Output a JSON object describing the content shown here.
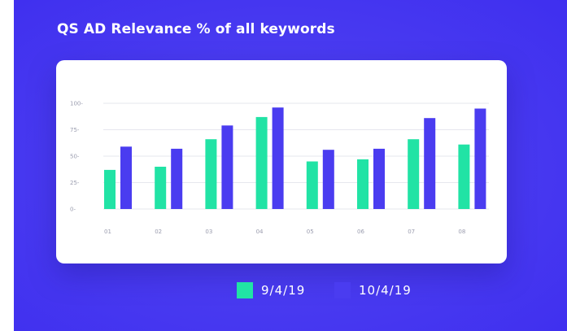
{
  "chart_data": {
    "type": "bar",
    "title": "QS AD Relevance % of all keywords",
    "xlabel": "",
    "ylabel": "",
    "ylim": [
      0,
      100
    ],
    "yticks": [
      "0-",
      "25-",
      "50-",
      "75-",
      "100-"
    ],
    "ytick_values": [
      0,
      25,
      50,
      75,
      100
    ],
    "grid": true,
    "legend_position": "bottom-center",
    "categories": [
      "01",
      "02",
      "03",
      "04",
      "05",
      "06",
      "07",
      "08"
    ],
    "series": [
      {
        "name": "9/4/19",
        "color": "#21e3a5",
        "values": [
          37,
          40,
          66,
          87,
          45,
          47,
          66,
          61
        ]
      },
      {
        "name": "10/4/19",
        "color": "#4a3cf0",
        "values": [
          59,
          57,
          79,
          96,
          56,
          57,
          86,
          95
        ]
      }
    ]
  }
}
